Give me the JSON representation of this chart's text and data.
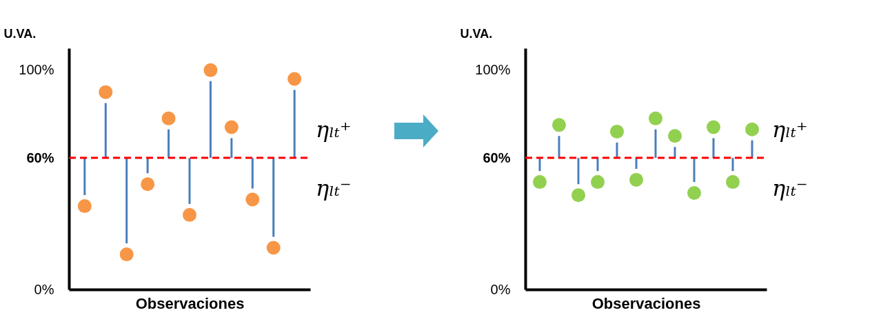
{
  "chart_data": [
    {
      "type": "scatter",
      "ylabel": "U.VA.",
      "xlabel": "Observaciones",
      "categories": [
        null,
        null,
        null,
        null,
        null,
        null,
        null,
        null,
        null,
        null,
        null
      ],
      "series": [
        {
          "color": "#f79646",
          "values": [
            38,
            90,
            16,
            48,
            78,
            34,
            100,
            74,
            41,
            19,
            96
          ],
          "errors": [
            [
              43,
              60
            ],
            [
              60,
              85
            ],
            [
              21,
              60
            ],
            [
              53,
              60
            ],
            [
              60,
              73
            ],
            [
              39,
              60
            ],
            [
              60,
              95
            ],
            [
              60,
              69
            ],
            [
              46,
              60
            ],
            [
              24,
              60
            ],
            [
              60,
              91
            ]
          ]
        }
      ],
      "ylim": [
        0,
        110
      ],
      "yticks": [
        {
          "value": 0,
          "label": "0%"
        },
        {
          "value": 60,
          "label": "60%"
        },
        {
          "value": 100,
          "label": "100%"
        }
      ],
      "ref_lines": [
        {
          "axis": "y",
          "value": 60,
          "color": "#ff0000",
          "line_style": "dashed"
        }
      ],
      "annotations": [
        "ηₗₜ⁺",
        "ηₗₜ⁻"
      ],
      "marker": "circle",
      "grid": false
    },
    {
      "type": "scatter",
      "ylabel": "U.VA.",
      "xlabel": "Observaciones",
      "categories": [
        null,
        null,
        null,
        null,
        null,
        null,
        null,
        null,
        null,
        null,
        null,
        null
      ],
      "series": [
        {
          "color": "#92d050",
          "values": [
            49,
            75,
            43,
            49,
            72,
            50,
            78,
            70,
            44,
            74,
            49,
            73
          ],
          "errors": [
            [
              54,
              60
            ],
            [
              60,
              70
            ],
            [
              48,
              60
            ],
            [
              54,
              60
            ],
            [
              60,
              67
            ],
            [
              55,
              60
            ],
            [
              60,
              73
            ],
            [
              60,
              65
            ],
            [
              49,
              60
            ],
            [
              60,
              69
            ],
            [
              54,
              60
            ],
            [
              60,
              68
            ]
          ]
        }
      ],
      "ylim": [
        0,
        110
      ],
      "yticks": [
        {
          "value": 0,
          "label": "0%"
        },
        {
          "value": 60,
          "label": "60%"
        },
        {
          "value": 100,
          "label": "100%"
        }
      ],
      "ref_lines": [
        {
          "axis": "y",
          "value": 60,
          "color": "#ff0000",
          "line_style": "dashed"
        }
      ],
      "annotations": [
        "ηₗₜ⁺",
        "ηₗₜ⁻"
      ],
      "marker": "circle",
      "grid": false
    }
  ]
}
